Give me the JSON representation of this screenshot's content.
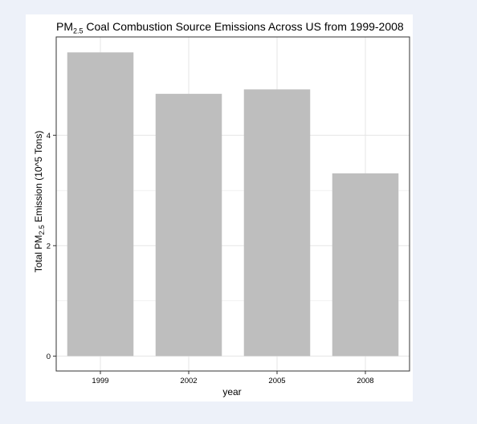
{
  "chart_data": {
    "type": "bar",
    "title": {
      "prefix": "PM",
      "subscript": "2.5",
      "suffix": " Coal Combustion Source Emissions Across US from 1999-2008"
    },
    "xlabel": "year",
    "ylabel": {
      "prefix": "Total PM",
      "subscript": "2.5",
      "suffix": " Emission (10^5 Tons)"
    },
    "categories": [
      "1999",
      "2002",
      "2005",
      "2008"
    ],
    "values": [
      5.5,
      4.75,
      4.83,
      3.31
    ],
    "ylim": [
      -0.27,
      5.78
    ],
    "yticks": [
      0,
      2,
      4
    ],
    "grid": true,
    "legend": "none"
  },
  "colors": {
    "bar": "#bebebe",
    "grid": "#e5e5e5",
    "panel_border": "#333333",
    "panel_background": "#ffffff",
    "page_background": "#edf1f9"
  }
}
